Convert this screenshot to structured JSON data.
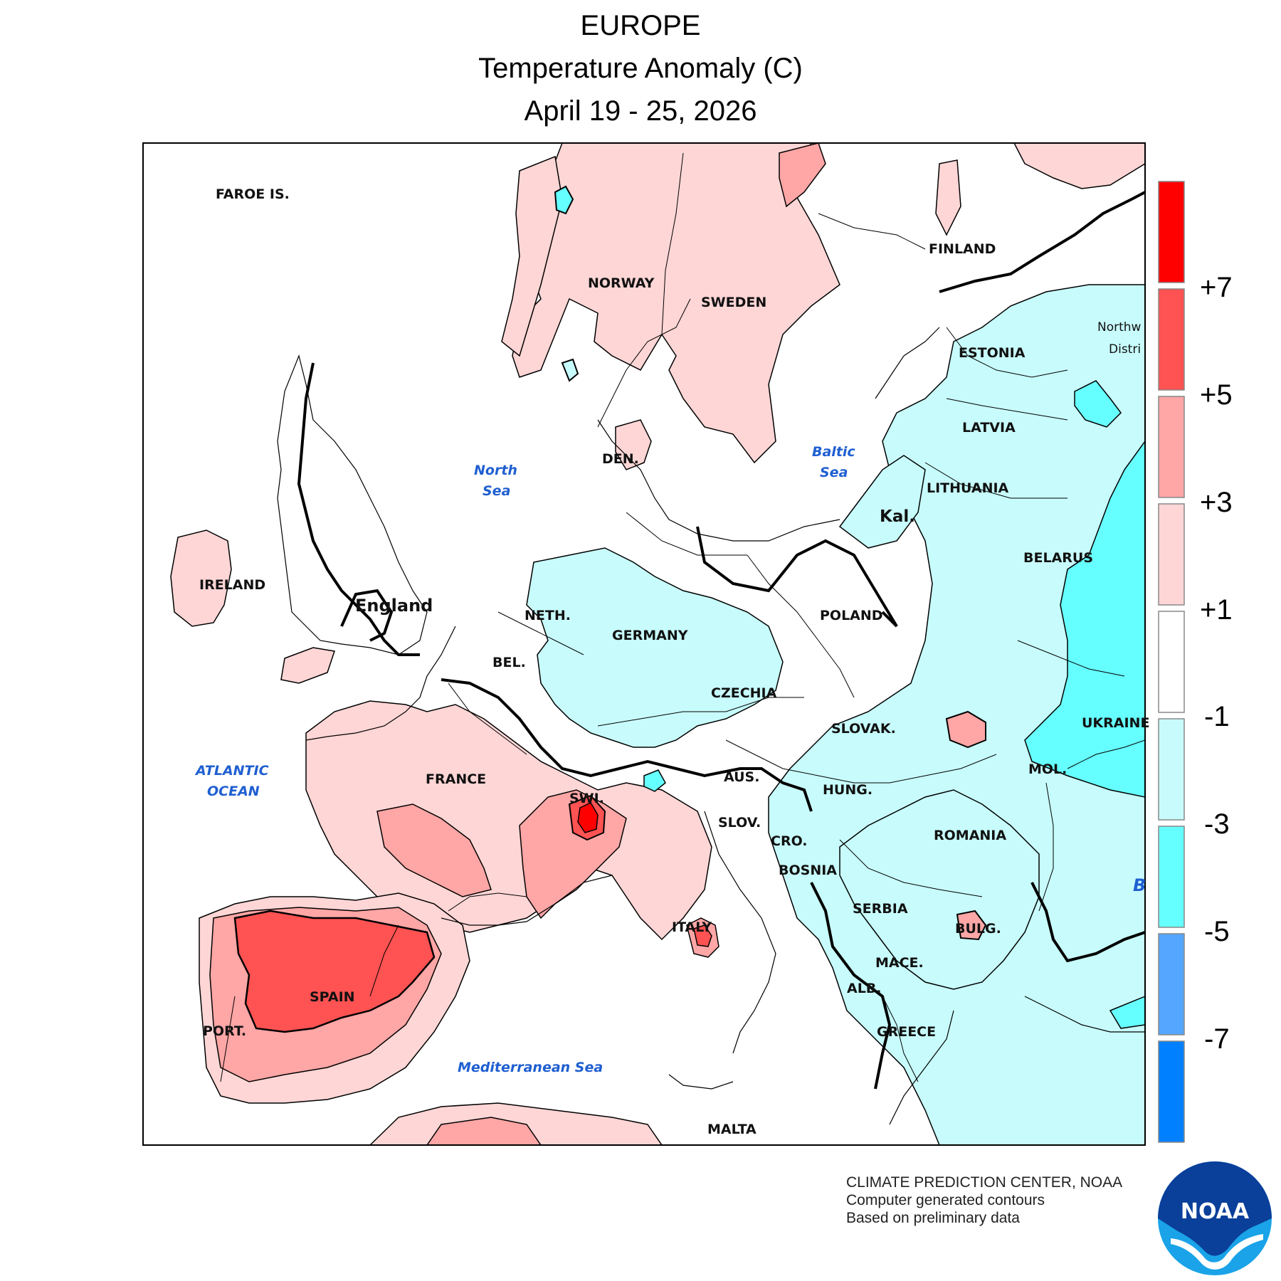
{
  "header": {
    "region": "EUROPE",
    "variable": "Temperature Anomaly (C)",
    "period": "April 19 - 25, 2026"
  },
  "legend": {
    "labels": [
      "+7",
      "+5",
      "+3",
      "+1",
      "-1",
      "-3",
      "-5",
      "-7"
    ],
    "bins": [
      {
        "range": "> +7",
        "color": "#ff0000"
      },
      {
        "range": "+5 to +7",
        "color": "#ff5252"
      },
      {
        "range": "+3 to +5",
        "color": "#ffa6a6"
      },
      {
        "range": "+1 to +3",
        "color": "#ffd6d6"
      },
      {
        "range": "-1 to +1",
        "color": "#ffffff"
      },
      {
        "range": "-3 to -1",
        "color": "#c8fcfc"
      },
      {
        "range": "-5 to -3",
        "color": "#66ffff"
      },
      {
        "range": "-7 to -5",
        "color": "#55a6ff"
      },
      {
        "range": "< -7",
        "color": "#0080ff"
      }
    ]
  },
  "map": {
    "countries": [
      "FAROE IS.",
      "NORWAY",
      "SWEDEN",
      "FINLAND",
      "ESTONIA",
      "LATVIA",
      "LITHUANIA",
      "Kal.",
      "BELARUS",
      "IRELAND",
      "England",
      "DEN.",
      "NETH.",
      "GERMANY",
      "POLAND",
      "BEL.",
      "CZECHIA",
      "SLOVAK.",
      "UKRAINE",
      "FRANCE",
      "SWI.",
      "AUS.",
      "HUNG.",
      "MOL.",
      "SLOV.",
      "CRO.",
      "ROMANIA",
      "BOSNIA",
      "SERBIA",
      "ITALY",
      "BULG.",
      "MACE.",
      "ALB.",
      "SPAIN",
      "PORT.",
      "GREECE",
      "MALTA",
      "Northw",
      "Distri"
    ],
    "water": [
      "North",
      "Sea",
      "Baltic",
      "Sea",
      "ATLANTIC",
      "OCEAN",
      "Mediterranean Sea",
      "B"
    ]
  },
  "footer": {
    "agency": "CLIMATE PREDICTION CENTER, NOAA",
    "note1": "Computer generated contours",
    "note2": "Based on preliminary data",
    "logo_text": "NOAA"
  },
  "colors": {
    "warm1": "#ffd6d6",
    "warm3": "#ffa6a6",
    "warm5": "#ff5252",
    "warm7": "#ff0000",
    "cool1": "#c8fcfc",
    "cool3": "#66ffff",
    "noaa_blue": "#0a5bc4",
    "noaa_light": "#1aa3e8"
  }
}
